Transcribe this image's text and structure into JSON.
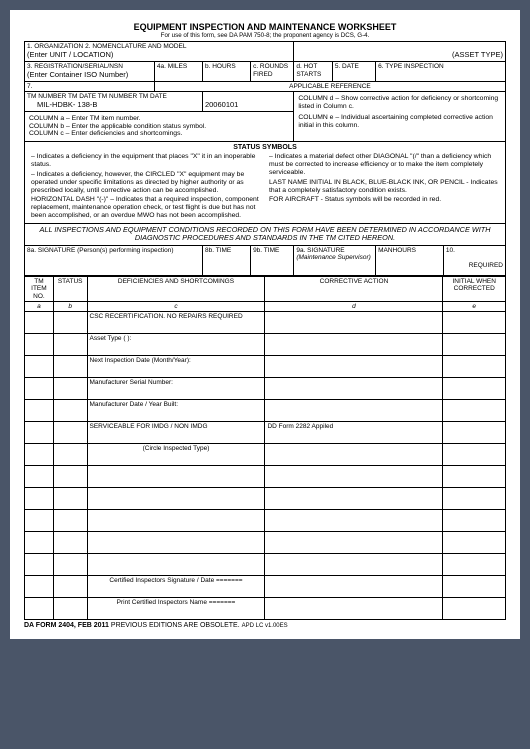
{
  "header": {
    "title": "EQUIPMENT INSPECTION AND MAINTENANCE WORKSHEET",
    "subtitle": "For use of this form, see DA PAM 750-8; the proponent agency is DCS, G-4."
  },
  "row1": {
    "cell1_label": "1. ORGANIZATION",
    "cell2_label": "2. NOMENCLATURE AND MODEL",
    "cell1_value": "(Enter UNIT / LOCATION)",
    "cell_right": "(ASSET TYPE)"
  },
  "row2": {
    "c3_label": "3. REGISTRATION/SERIAL/NSN",
    "c3_value": "(Enter Container ISO Number)",
    "c4a": "4a. MILES",
    "c4b": "b. HOURS",
    "c4c": "c. ROUNDS FIRED",
    "c4d": "d. HOT STARTS",
    "c5": "5. DATE",
    "c6": "6. TYPE INSPECTION"
  },
  "row3": {
    "c7": "7.",
    "appref": "APPLICABLE REFERENCE"
  },
  "row4": {
    "left_label": "TM NUMBER TM DATE TM NUMBER TM DATE",
    "left_value": "MIL-HDBK- 138-B",
    "right_value": "20060101"
  },
  "columns": {
    "a": "COLUMN a – Enter TM item number.",
    "b": "COLUMN b – Enter the applicable condition status symbol.",
    "c": "COLUMN c – Enter deficiencies and shortcomings.",
    "d": "COLUMN d – Show corrective action for deficiency or shortcoming listed in Column c.",
    "e": "COLUMN e – Individual ascertaining completed corrective action initial in this column."
  },
  "status": {
    "hdr": "STATUS SYMBOLS",
    "l1": "– Indicates a deficiency in the equipment that places \"X\" it in an inoperable status.",
    "l2": "– Indicates a deficiency, however, the CIRCLED \"X\" equipment may be operated under specific limitations as directed by higher authority or as prescribed locally, until corrective action can be accomplished.",
    "l3": "HORIZONTAL DASH \"(-)\" – Indicates that a required inspection, component replacement, maintenance operation check, or test flight is due but has not been accomplished, or an overdue MWO has not been accomplished.",
    "r1": "– Indicates a material defect other DIAGONAL \"(/\" than a deficiency which must be corrected to increase efficiency or to make the item completely serviceable.",
    "r2": "LAST NAME INITIAL IN BLACK, BLUE-BLACK INK, OR PENCIL - Indicates that a completely satisfactory condition exists.",
    "r3": "FOR AIRCRAFT - Status symbols will be recorded in red."
  },
  "accordance": "ALL INSPECTIONS AND EQUIPMENT CONDITIONS RECORDED ON THIS FORM HAVE BEEN DETERMINED IN ACCORDANCE WITH DIAGNOSTIC PROCEDURES AND STANDARDS IN THE TM CITED HEREON.",
  "sig": {
    "c8a": "8a. SIGNATURE (Person(s) performing inspection)",
    "c8b": "8b. TIME",
    "c9b": "9b. TIME",
    "c9a": "9a. SIGNATURE",
    "c9a_sub": "(Maintenance Supervisor)",
    "manhours": "MANHOURS",
    "c10": "10.",
    "required": "REQUIRED"
  },
  "thead": {
    "tm": "TM ITEM NO.",
    "status": "STATUS",
    "def": "DEFICIENCIES AND SHORTCOMINGS",
    "corr": "CORRECTIVE ACTION",
    "init": "INITIAL WHEN CORRECTED",
    "a": "a",
    "b": "b",
    "c": "c",
    "d": "d",
    "e": "e"
  },
  "rows": [
    {
      "c": "CSC RECERTIFICATION. NO REPAIRS REQUIRED",
      "d": ""
    },
    {
      "c": "Asset Type ( ):",
      "d": ""
    },
    {
      "c": "Next Inspection Date (Month/Year):",
      "d": ""
    },
    {
      "c": "Manufacturer Serial Number:",
      "d": ""
    },
    {
      "c": "Manufacturer Date / Year Built:",
      "d": ""
    },
    {
      "c": "SERVICEABLE FOR    IMDG   /   NON  IMDG",
      "d": "DD Form 2282 Appiled"
    },
    {
      "c_center": "(Circle Inspected Type)",
      "d": ""
    },
    {
      "c": "",
      "d": ""
    },
    {
      "c": "",
      "d": ""
    },
    {
      "c": "",
      "d": ""
    },
    {
      "c": "",
      "d": ""
    },
    {
      "c": "",
      "d": ""
    },
    {
      "c_center": "Certified Inspectors Signature /  Date =======",
      "d": ""
    },
    {
      "c_center": "Print Certified Inspectors Name =======",
      "d": ""
    }
  ],
  "footer": {
    "form": "DA FORM 2404, FEB 2011",
    "prev": "PREVIOUS EDITIONS ARE OBSOLETE.",
    "apd": "APD LC v1.00ES"
  }
}
